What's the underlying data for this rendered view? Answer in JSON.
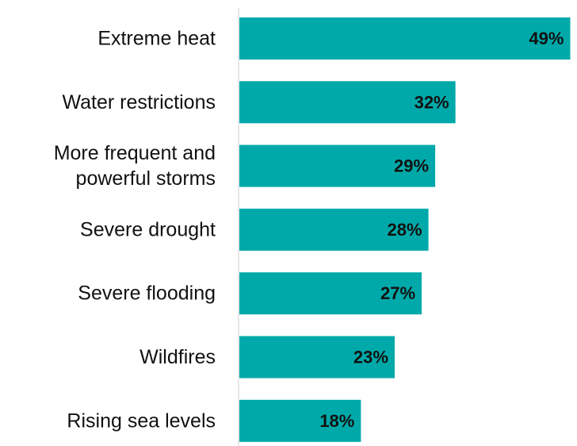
{
  "chart_data": {
    "type": "bar",
    "orientation": "horizontal",
    "categories": [
      [
        "Extreme heat"
      ],
      [
        "Water restrictions"
      ],
      [
        "More frequent and",
        "powerful storms"
      ],
      [
        "Severe drought"
      ],
      [
        "Severe flooding"
      ],
      [
        "Wildfires"
      ],
      [
        "Rising sea levels"
      ]
    ],
    "values": [
      49,
      32,
      29,
      28,
      27,
      23,
      18
    ],
    "value_labels": [
      "49%",
      "32%",
      "29%",
      "28%",
      "27%",
      "23%",
      "18%"
    ],
    "title": "",
    "xlabel": "",
    "ylabel": "",
    "xlim": [
      0,
      50
    ],
    "grid": false,
    "legend": "none",
    "bar_color": "#00a9a9",
    "text_color": "#111111",
    "axis_color": "#d0d0d0"
  }
}
